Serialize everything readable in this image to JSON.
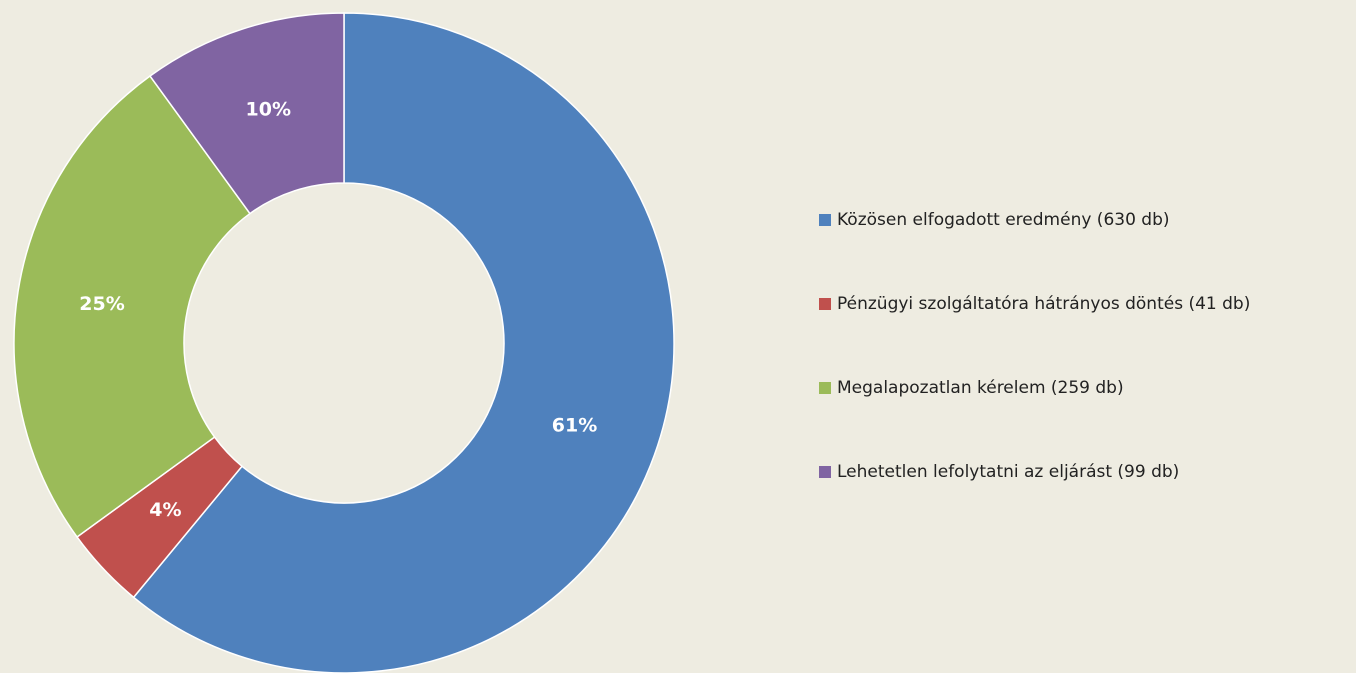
{
  "chart_data": {
    "type": "donut",
    "categories": [
      "Közösen elfogadott eredmény (630 db)",
      "Pénzügyi szolgáltatóra hátrányos döntés (41 db)",
      "Megalapozatlan kérelem (259 db)",
      "Lehetetlen lefolytatni az eljárást (99 db)"
    ],
    "values": [
      61,
      4,
      25,
      10
    ],
    "value_labels": [
      "61%",
      "4%",
      "25%",
      "10%"
    ],
    "colors": [
      "#4f81bd",
      "#c0504d",
      "#9bbb59",
      "#8064a2"
    ],
    "legend": "right"
  }
}
